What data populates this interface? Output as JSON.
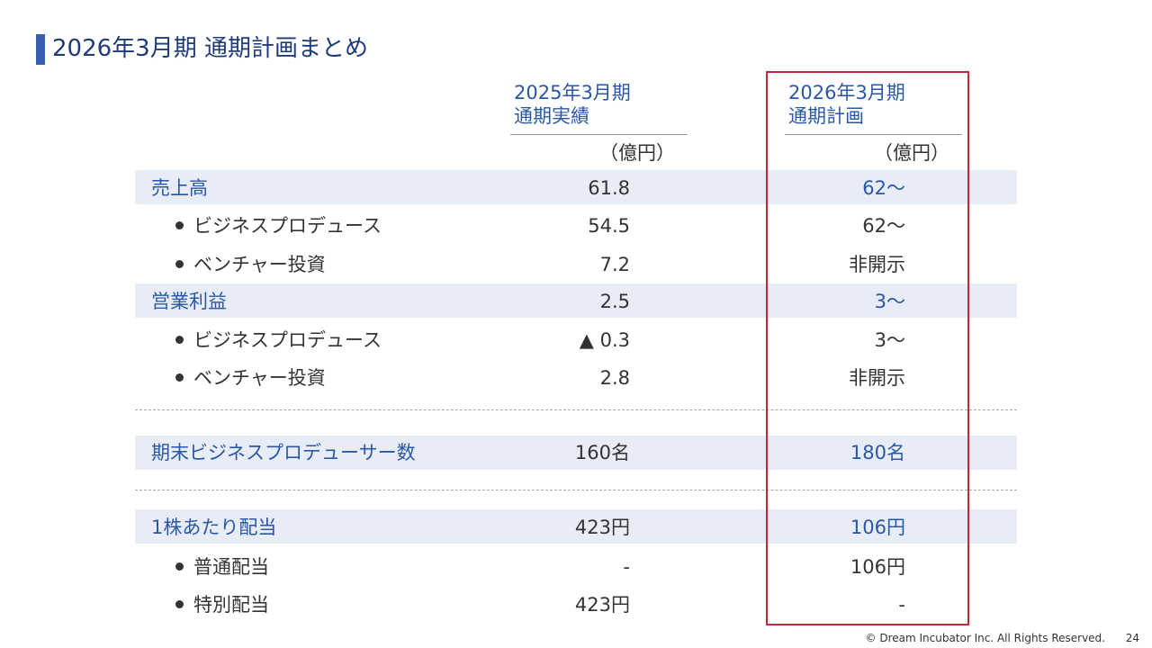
{
  "title": "2026年3月期 通期計画まとめ",
  "columns": [
    {
      "line1": "2025年3月期",
      "line2": "通期実績",
      "unit": "（億円）"
    },
    {
      "line1": "2026年3月期",
      "line2": "通期計画",
      "unit": "（億円）"
    }
  ],
  "rows": [
    {
      "label": "売上高",
      "fy2025": "61.8",
      "fy2026": "62～",
      "kind": "header"
    },
    {
      "label": "ビジネスプロデュース",
      "fy2025": "54.5",
      "fy2026": "62～",
      "kind": "sub"
    },
    {
      "label": "ベンチャー投資",
      "fy2025": "7.2",
      "fy2026": "非開示",
      "kind": "sub"
    },
    {
      "label": "営業利益",
      "fy2025": "2.5",
      "fy2026": "3～",
      "kind": "header"
    },
    {
      "label": "ビジネスプロデュース",
      "fy2025": "▲ 0.3",
      "fy2026": "3～",
      "kind": "sub"
    },
    {
      "label": "ベンチャー投資",
      "fy2025": "2.8",
      "fy2026": "非開示",
      "kind": "sub"
    },
    {
      "label": "期末ビジネスプロデューサー数",
      "fy2025": "160名",
      "fy2026": "180名",
      "kind": "header"
    },
    {
      "label": "1株あたり配当",
      "fy2025": "423円",
      "fy2026": "106円",
      "kind": "header"
    },
    {
      "label": "普通配当",
      "fy2025": "-",
      "fy2026": "106円",
      "kind": "sub"
    },
    {
      "label": "特別配当",
      "fy2025": "423円",
      "fy2026": "-",
      "kind": "sub"
    }
  ],
  "footer": "© Dream Incubator Inc. All Rights Reserved.",
  "page_number": "24",
  "colors": {
    "accent": "#2a58a8",
    "band": "#e8ecf6",
    "highlight_box": "#c0283a"
  }
}
